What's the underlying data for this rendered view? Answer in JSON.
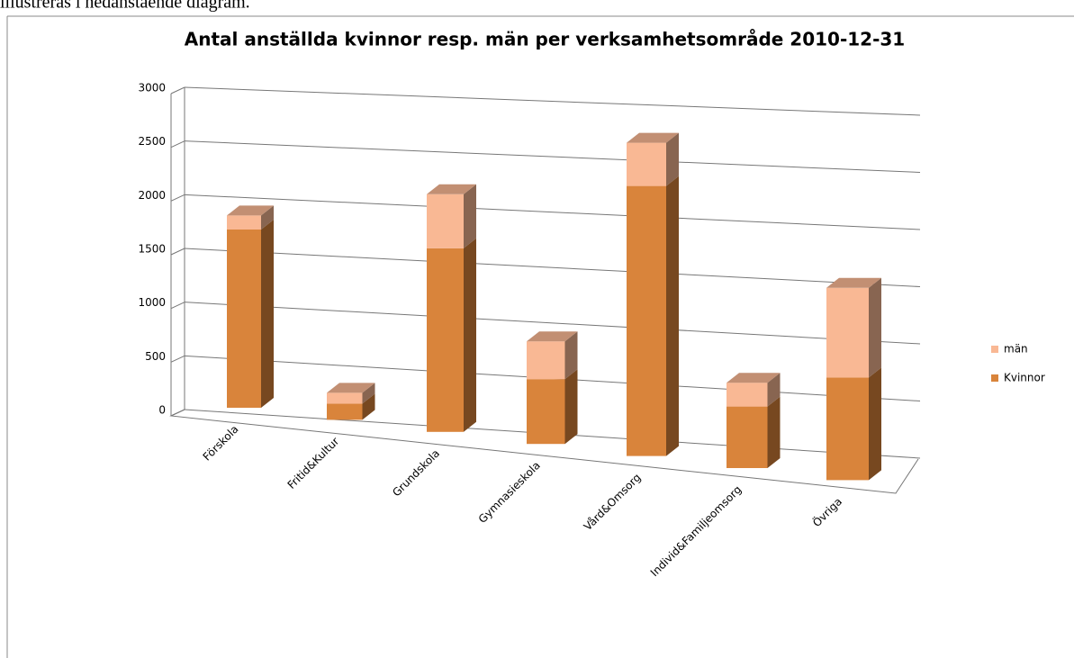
{
  "intro": "illustreras i nedanstående diagram.",
  "chart_data": {
    "type": "bar3d_stacked",
    "title": "Antal anställda kvinnor resp. män per verksamhetsområde  2010-12-31",
    "categories": [
      "Förskola",
      "Fritid&Kultur",
      "Grundskola",
      "Gymnasieskola",
      "Vård&Omsorg",
      "Individ&Familjeomsorg",
      "Övriga"
    ],
    "series": [
      {
        "name": "Kvinnor",
        "color": "#d9843b",
        "values": [
          1650,
          150,
          1700,
          600,
          2500,
          570,
          950
        ]
      },
      {
        "name": "män",
        "color": "#f9b894",
        "values": [
          130,
          100,
          500,
          350,
          400,
          220,
          830
        ]
      }
    ],
    "ylim": [
      0,
      3000
    ],
    "yticks": [
      0,
      500,
      1000,
      1500,
      2000,
      2500,
      3000
    ],
    "grid": true,
    "legend": "right"
  }
}
